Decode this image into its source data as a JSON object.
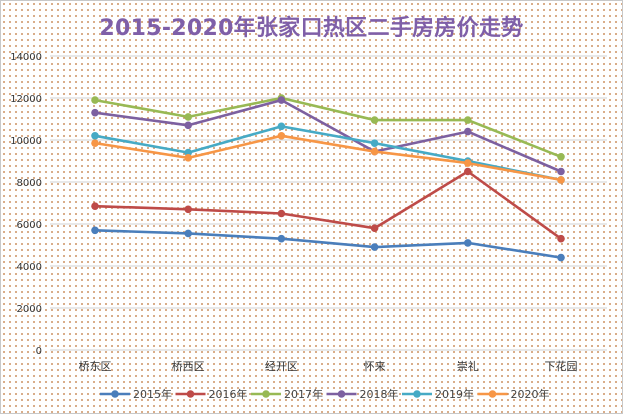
{
  "chart_data": {
    "type": "line",
    "title": "2015-2020年张家口热区二手房房价走势",
    "xlabel": "",
    "ylabel": "",
    "categories": [
      "桥东区",
      "桥西区",
      "经开区",
      "怀来",
      "崇礼",
      "下花园"
    ],
    "ylim": [
      0,
      14000
    ],
    "yticks": [
      "0",
      "2000",
      "4000",
      "6000",
      "8000",
      "10000",
      "12000",
      "14000"
    ],
    "grid": true,
    "legend": "bottom",
    "series": [
      {
        "name": "2015年",
        "color": "#4a7ebb",
        "values": [
          5700,
          5550,
          5300,
          4900,
          5100,
          4400
        ]
      },
      {
        "name": "2016年",
        "color": "#be4b48",
        "values": [
          6850,
          6700,
          6500,
          5800,
          8500,
          5300
        ]
      },
      {
        "name": "2017年",
        "color": "#98b954",
        "values": [
          11900,
          11100,
          12000,
          10950,
          10950,
          9200
        ]
      },
      {
        "name": "2018年",
        "color": "#7d60a0",
        "values": [
          11300,
          10700,
          11900,
          9450,
          10400,
          8500
        ]
      },
      {
        "name": "2019年",
        "color": "#46aac5",
        "values": [
          10200,
          9400,
          10650,
          9850,
          9000,
          8100
        ]
      },
      {
        "name": "2020年",
        "color": "#f79646",
        "values": [
          9850,
          9150,
          10200,
          9450,
          8900,
          8100
        ]
      }
    ]
  }
}
